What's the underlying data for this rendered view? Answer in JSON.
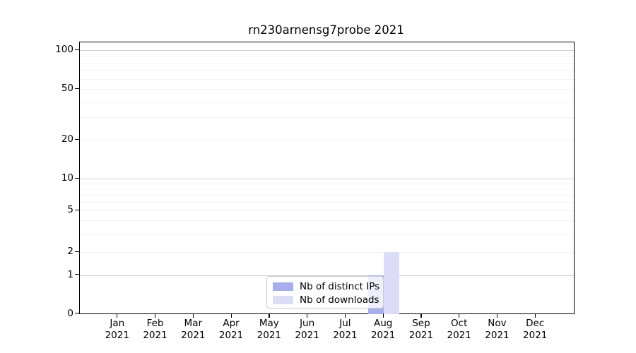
{
  "chart_data": {
    "type": "bar",
    "title": "rn230arnensg7probe 2021",
    "categories": [
      "Jan 2021",
      "Feb 2021",
      "Mar 2021",
      "Apr 2021",
      "May 2021",
      "Jun 2021",
      "Jul 2021",
      "Aug 2021",
      "Sep 2021",
      "Oct 2021",
      "Nov 2021",
      "Dec 2021"
    ],
    "series": [
      {
        "name": "Nb of distinct IPs",
        "color": "#a8aeea",
        "values": [
          0,
          0,
          0,
          0,
          0,
          0,
          0,
          1,
          0,
          0,
          0,
          0
        ]
      },
      {
        "name": "Nb of downloads",
        "color": "#dbdcf6",
        "values": [
          0,
          0,
          0,
          0,
          0,
          0,
          0,
          2,
          0,
          0,
          0,
          0
        ]
      }
    ],
    "xlabel": "",
    "ylabel": "",
    "yscale": "log-like (0, 1, 2, 5, 10, 20, 50, 100)",
    "y_ticks": [
      0,
      1,
      2,
      5,
      10,
      20,
      50,
      100
    ],
    "ylim": [
      0,
      120
    ],
    "grid": "horizontal, major lines at 1/10/100 darker, minor log lines faint",
    "legend_position": "inside lower-center",
    "colors": {
      "major_gridline": "#cfcfcf",
      "minor_gridline": "#f2f2f2",
      "axis": "#000000",
      "legend_border": "#cccccc"
    }
  }
}
